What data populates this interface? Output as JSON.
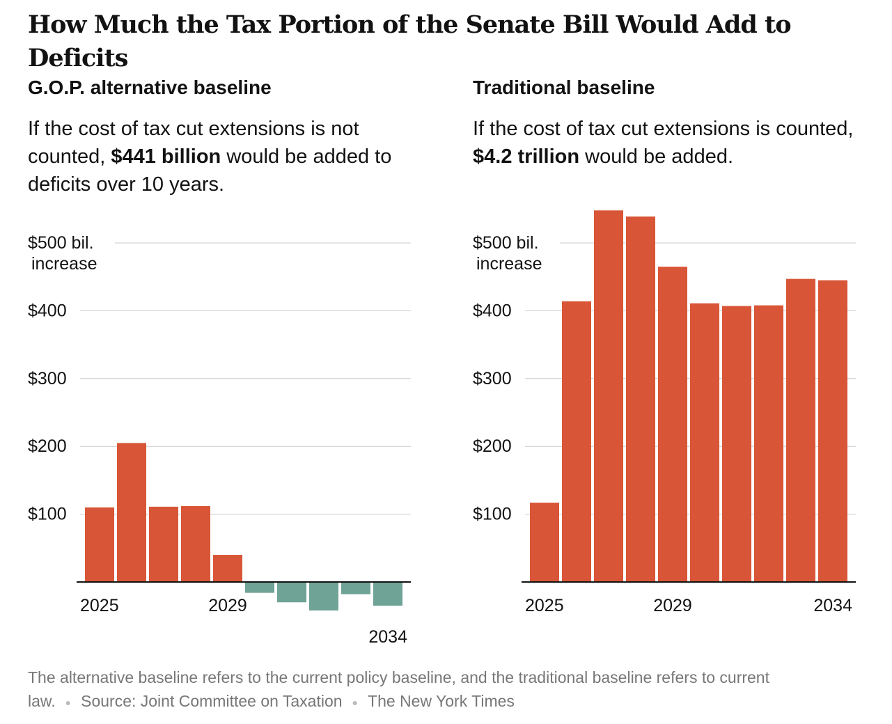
{
  "headline": "How Much the Tax Portion of the Senate Bill Would Add to Deficits",
  "panels": [
    {
      "title": "G.O.P. alternative baseline",
      "desc_before": "If the cost of tax cut extensions is not counted, ",
      "desc_bold": "$441 billion",
      "desc_after": " would be added to deficits over 10 years."
    },
    {
      "title": "Traditional baseline",
      "desc_before": "If the cost of tax cut extensions is counted, ",
      "desc_bold": "$4.2 trillion",
      "desc_after": " would be added."
    }
  ],
  "footer": {
    "note": "The alternative baseline refers to the current policy baseline, and the traditional baseline refers to current law.",
    "source": "Source: Joint Committee on Taxation",
    "credit": "The New York Times"
  },
  "colors": {
    "positive": "#d85637",
    "negative": "#6fa396",
    "grid": "#cccccc",
    "axis": "#121212"
  },
  "chart_data": [
    {
      "type": "bar",
      "title": "G.O.P. alternative baseline",
      "categories": [
        "2025",
        "2026",
        "2027",
        "2028",
        "2029",
        "2030",
        "2031",
        "2032",
        "2033",
        "2034"
      ],
      "values": [
        110,
        205,
        111,
        112,
        40,
        -16,
        -30,
        -42,
        -18,
        -35
      ],
      "ylim": [
        -45,
        500
      ],
      "yticks": [
        100,
        200,
        300,
        400,
        500
      ],
      "ytick_labels": [
        "$100",
        "$200",
        "$300",
        "$400",
        "$500 bil.|increase"
      ],
      "xtick_labels": [
        {
          "index": 0,
          "label": "2025"
        },
        {
          "index": 4,
          "label": "2029"
        },
        {
          "index": 9,
          "label": "2034"
        }
      ],
      "grid": true
    },
    {
      "type": "bar",
      "title": "Traditional baseline",
      "categories": [
        "2025",
        "2026",
        "2027",
        "2028",
        "2029",
        "2030",
        "2031",
        "2032",
        "2033",
        "2034"
      ],
      "values": [
        117,
        414,
        548,
        539,
        465,
        411,
        407,
        408,
        447,
        445
      ],
      "ylim": [
        0,
        550
      ],
      "yticks": [
        100,
        200,
        300,
        400,
        500
      ],
      "ytick_labels": [
        "$100",
        "$200",
        "$300",
        "$400",
        "$500 bil.|increase"
      ],
      "xtick_labels": [
        {
          "index": 0,
          "label": "2025"
        },
        {
          "index": 4,
          "label": "2029"
        },
        {
          "index": 9,
          "label": "2034"
        }
      ],
      "grid": true
    }
  ]
}
